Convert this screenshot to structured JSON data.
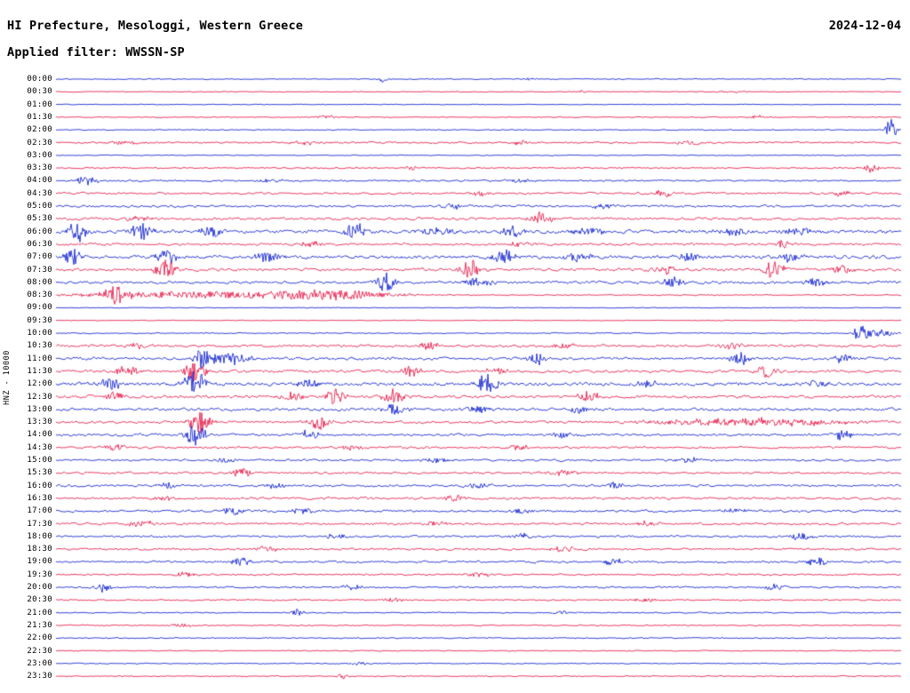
{
  "header": {
    "title": "HI Prefecture, Mesologgi, Western Greece",
    "date": "2024-12-04",
    "filter": "Applied filter: WWSSN-SP"
  },
  "y_axis_label": "HNZ - 10000",
  "colors": {
    "blue": "#0011cc",
    "red": "#e50a3c",
    "text": "#000000",
    "background": "#ffffff"
  },
  "chart_data": {
    "type": "line",
    "subtype": "seismogram-helicorder",
    "title": "HI Prefecture, Mesologgi, Western Greece",
    "date": "2024-12-04",
    "station_channel": "HNZ",
    "scale": "10000",
    "filter": "WWSSN-SP",
    "row_duration_minutes": 30,
    "x_range_minutes": [
      0,
      30
    ],
    "legend": "alternating blue/red traces per 30-minute row",
    "event_format": "p = position fraction across row (0-1), a = peak amplitude px, w = gaussian half-width fraction",
    "rows": [
      {
        "t": "00:00",
        "c": "blue",
        "n": 0.8,
        "e": [
          {
            "p": 0.385,
            "a": 4,
            "w": 0.006
          },
          {
            "p": 0.56,
            "a": 1.5,
            "w": 0.01
          }
        ]
      },
      {
        "t": "00:30",
        "c": "red",
        "n": 0.7,
        "e": [
          {
            "p": 0.62,
            "a": 2,
            "w": 0.008
          },
          {
            "p": 0.8,
            "a": 1.2,
            "w": 0.02
          }
        ]
      },
      {
        "t": "01:00",
        "c": "blue",
        "n": 0.6,
        "e": []
      },
      {
        "t": "01:30",
        "c": "red",
        "n": 0.8,
        "e": [
          {
            "p": 0.32,
            "a": 2.5,
            "w": 0.01
          },
          {
            "p": 0.83,
            "a": 2.5,
            "w": 0.008
          }
        ]
      },
      {
        "t": "02:00",
        "c": "blue",
        "n": 0.8,
        "e": [
          {
            "p": 0.988,
            "a": 14,
            "w": 0.006
          }
        ]
      },
      {
        "t": "02:30",
        "c": "red",
        "n": 1.6,
        "e": [
          {
            "p": 0.08,
            "a": 2,
            "w": 0.03
          },
          {
            "p": 0.3,
            "a": 2,
            "w": 0.02
          },
          {
            "p": 0.55,
            "a": 2,
            "w": 0.02
          },
          {
            "p": 0.75,
            "a": 2.5,
            "w": 0.015
          }
        ]
      },
      {
        "t": "03:00",
        "c": "blue",
        "n": 0.7,
        "e": []
      },
      {
        "t": "03:30",
        "c": "red",
        "n": 1.2,
        "e": [
          {
            "p": 0.42,
            "a": 2,
            "w": 0.01
          },
          {
            "p": 0.965,
            "a": 5,
            "w": 0.008
          }
        ]
      },
      {
        "t": "04:00",
        "c": "blue",
        "n": 1.5,
        "e": [
          {
            "p": 0.035,
            "a": 6,
            "w": 0.012
          },
          {
            "p": 0.25,
            "a": 2,
            "w": 0.02
          },
          {
            "p": 0.55,
            "a": 2,
            "w": 0.02
          }
        ]
      },
      {
        "t": "04:30",
        "c": "red",
        "n": 1.8,
        "e": [
          {
            "p": 0.5,
            "a": 3,
            "w": 0.012
          },
          {
            "p": 0.72,
            "a": 5,
            "w": 0.01
          },
          {
            "p": 0.93,
            "a": 4,
            "w": 0.01
          }
        ]
      },
      {
        "t": "05:00",
        "c": "blue",
        "n": 2,
        "e": [
          {
            "p": 0.47,
            "a": 3,
            "w": 0.015
          },
          {
            "p": 0.65,
            "a": 3,
            "w": 0.015
          }
        ]
      },
      {
        "t": "05:30",
        "c": "red",
        "n": 2.2,
        "e": [
          {
            "p": 0.1,
            "a": 3,
            "w": 0.015
          },
          {
            "p": 0.575,
            "a": 9,
            "w": 0.012
          }
        ]
      },
      {
        "t": "06:00",
        "c": "blue",
        "n": 3,
        "e": [
          {
            "p": 0.025,
            "a": 12,
            "w": 0.01
          },
          {
            "p": 0.1,
            "a": 11,
            "w": 0.012
          },
          {
            "p": 0.185,
            "a": 8,
            "w": 0.012
          },
          {
            "p": 0.355,
            "a": 10,
            "w": 0.012
          },
          {
            "p": 0.45,
            "a": 4,
            "w": 0.02
          },
          {
            "p": 0.54,
            "a": 7,
            "w": 0.012
          },
          {
            "p": 0.63,
            "a": 4,
            "w": 0.02
          },
          {
            "p": 0.8,
            "a": 4,
            "w": 0.02
          },
          {
            "p": 0.88,
            "a": 4,
            "w": 0.02
          }
        ]
      },
      {
        "t": "06:30",
        "c": "red",
        "n": 2,
        "e": [
          {
            "p": 0.3,
            "a": 3,
            "w": 0.015
          },
          {
            "p": 0.55,
            "a": 3,
            "w": 0.015
          },
          {
            "p": 0.86,
            "a": 5,
            "w": 0.008
          }
        ]
      },
      {
        "t": "07:00",
        "c": "blue",
        "n": 3,
        "e": [
          {
            "p": 0.02,
            "a": 10,
            "w": 0.01
          },
          {
            "p": 0.13,
            "a": 8,
            "w": 0.012
          },
          {
            "p": 0.25,
            "a": 6,
            "w": 0.015
          },
          {
            "p": 0.53,
            "a": 9,
            "w": 0.012
          },
          {
            "p": 0.62,
            "a": 6,
            "w": 0.015
          },
          {
            "p": 0.75,
            "a": 5,
            "w": 0.015
          },
          {
            "p": 0.87,
            "a": 6,
            "w": 0.012
          }
        ]
      },
      {
        "t": "07:30",
        "c": "red",
        "n": 2.5,
        "e": [
          {
            "p": 0.13,
            "a": 10,
            "w": 0.012
          },
          {
            "p": 0.49,
            "a": 12,
            "w": 0.012
          },
          {
            "p": 0.72,
            "a": 6,
            "w": 0.012
          },
          {
            "p": 0.85,
            "a": 11,
            "w": 0.012
          },
          {
            "p": 0.93,
            "a": 5,
            "w": 0.012
          }
        ]
      },
      {
        "t": "08:00",
        "c": "blue",
        "n": 2.5,
        "e": [
          {
            "p": 0.39,
            "a": 13,
            "w": 0.01
          },
          {
            "p": 0.5,
            "a": 5,
            "w": 0.015
          },
          {
            "p": 0.73,
            "a": 7,
            "w": 0.012
          },
          {
            "p": 0.9,
            "a": 4,
            "w": 0.015
          }
        ]
      },
      {
        "t": "08:30",
        "c": "red",
        "n": 1,
        "e": [
          {
            "p": 0.07,
            "a": 8,
            "w": 0.015
          },
          {
            "p": 0.2,
            "a": 4,
            "w": 0.18
          },
          {
            "p": 0.33,
            "a": 4,
            "w": 0.05
          }
        ]
      },
      {
        "t": "09:00",
        "c": "blue",
        "n": 0.6,
        "e": []
      },
      {
        "t": "09:30",
        "c": "red",
        "n": 0.6,
        "e": []
      },
      {
        "t": "10:00",
        "c": "blue",
        "n": 0.9,
        "e": [
          {
            "p": 0.952,
            "a": 10,
            "w": 0.008
          },
          {
            "p": 0.975,
            "a": 4,
            "w": 0.02
          }
        ]
      },
      {
        "t": "10:30",
        "c": "red",
        "n": 2.2,
        "e": [
          {
            "p": 0.1,
            "a": 3,
            "w": 0.015
          },
          {
            "p": 0.44,
            "a": 5,
            "w": 0.012
          },
          {
            "p": 0.6,
            "a": 3,
            "w": 0.015
          },
          {
            "p": 0.8,
            "a": 3,
            "w": 0.015
          }
        ]
      },
      {
        "t": "11:00",
        "c": "blue",
        "n": 2.5,
        "e": [
          {
            "p": 0.175,
            "a": 13,
            "w": 0.012
          },
          {
            "p": 0.21,
            "a": 8,
            "w": 0.02
          },
          {
            "p": 0.57,
            "a": 7,
            "w": 0.01
          },
          {
            "p": 0.81,
            "a": 7,
            "w": 0.012
          },
          {
            "p": 0.93,
            "a": 5,
            "w": 0.01
          }
        ]
      },
      {
        "t": "11:30",
        "c": "red",
        "n": 2.5,
        "e": [
          {
            "p": 0.085,
            "a": 7,
            "w": 0.012
          },
          {
            "p": 0.165,
            "a": 12,
            "w": 0.012
          },
          {
            "p": 0.42,
            "a": 6,
            "w": 0.012
          },
          {
            "p": 0.52,
            "a": 5,
            "w": 0.012
          },
          {
            "p": 0.84,
            "a": 7,
            "w": 0.012
          }
        ]
      },
      {
        "t": "12:00",
        "c": "blue",
        "n": 3,
        "e": [
          {
            "p": 0.065,
            "a": 6,
            "w": 0.012
          },
          {
            "p": 0.165,
            "a": 16,
            "w": 0.012
          },
          {
            "p": 0.3,
            "a": 5,
            "w": 0.015
          },
          {
            "p": 0.51,
            "a": 12,
            "w": 0.012
          },
          {
            "p": 0.7,
            "a": 4,
            "w": 0.015
          },
          {
            "p": 0.9,
            "a": 4,
            "w": 0.015
          }
        ]
      },
      {
        "t": "12:30",
        "c": "red",
        "n": 2.5,
        "e": [
          {
            "p": 0.07,
            "a": 5,
            "w": 0.012
          },
          {
            "p": 0.28,
            "a": 6,
            "w": 0.012
          },
          {
            "p": 0.33,
            "a": 8,
            "w": 0.012
          },
          {
            "p": 0.4,
            "a": 9,
            "w": 0.012
          },
          {
            "p": 0.63,
            "a": 6,
            "w": 0.012
          }
        ]
      },
      {
        "t": "13:00",
        "c": "blue",
        "n": 2.5,
        "e": [
          {
            "p": 0.4,
            "a": 8,
            "w": 0.012
          },
          {
            "p": 0.5,
            "a": 4,
            "w": 0.015
          },
          {
            "p": 0.62,
            "a": 5,
            "w": 0.012
          }
        ]
      },
      {
        "t": "13:30",
        "c": "red",
        "n": 2.2,
        "e": [
          {
            "p": 0.17,
            "a": 14,
            "w": 0.012
          },
          {
            "p": 0.31,
            "a": 8,
            "w": 0.012
          },
          {
            "p": 0.82,
            "a": 4,
            "w": 0.12
          }
        ]
      },
      {
        "t": "14:00",
        "c": "blue",
        "n": 2.2,
        "e": [
          {
            "p": 0.165,
            "a": 12,
            "w": 0.012
          },
          {
            "p": 0.3,
            "a": 5,
            "w": 0.012
          },
          {
            "p": 0.6,
            "a": 3,
            "w": 0.015
          },
          {
            "p": 0.93,
            "a": 6,
            "w": 0.01
          }
        ]
      },
      {
        "t": "14:30",
        "c": "red",
        "n": 1.8,
        "e": [
          {
            "p": 0.07,
            "a": 4,
            "w": 0.012
          },
          {
            "p": 0.35,
            "a": 3,
            "w": 0.015
          },
          {
            "p": 0.55,
            "a": 3,
            "w": 0.015
          }
        ]
      },
      {
        "t": "15:00",
        "c": "blue",
        "n": 1.8,
        "e": [
          {
            "p": 0.2,
            "a": 3,
            "w": 0.015
          },
          {
            "p": 0.45,
            "a": 3,
            "w": 0.015
          },
          {
            "p": 0.75,
            "a": 3,
            "w": 0.015
          }
        ]
      },
      {
        "t": "15:30",
        "c": "red",
        "n": 1.8,
        "e": [
          {
            "p": 0.22,
            "a": 5,
            "w": 0.012
          },
          {
            "p": 0.6,
            "a": 2.5,
            "w": 0.02
          }
        ]
      },
      {
        "t": "16:00",
        "c": "blue",
        "n": 2,
        "e": [
          {
            "p": 0.13,
            "a": 4,
            "w": 0.012
          },
          {
            "p": 0.26,
            "a": 4,
            "w": 0.012
          },
          {
            "p": 0.5,
            "a": 3,
            "w": 0.015
          },
          {
            "p": 0.66,
            "a": 4,
            "w": 0.012
          }
        ]
      },
      {
        "t": "16:30",
        "c": "red",
        "n": 2,
        "e": [
          {
            "p": 0.13,
            "a": 3,
            "w": 0.015
          },
          {
            "p": 0.47,
            "a": 5,
            "w": 0.012
          }
        ]
      },
      {
        "t": "17:00",
        "c": "blue",
        "n": 2,
        "e": [
          {
            "p": 0.21,
            "a": 5,
            "w": 0.012
          },
          {
            "p": 0.29,
            "a": 4,
            "w": 0.012
          },
          {
            "p": 0.55,
            "a": 3,
            "w": 0.015
          },
          {
            "p": 0.8,
            "a": 3,
            "w": 0.015
          }
        ]
      },
      {
        "t": "17:30",
        "c": "red",
        "n": 2,
        "e": [
          {
            "p": 0.1,
            "a": 3,
            "w": 0.015
          },
          {
            "p": 0.45,
            "a": 3,
            "w": 0.015
          },
          {
            "p": 0.7,
            "a": 3,
            "w": 0.015
          }
        ]
      },
      {
        "t": "18:00",
        "c": "blue",
        "n": 1.8,
        "e": [
          {
            "p": 0.33,
            "a": 4,
            "w": 0.012
          },
          {
            "p": 0.55,
            "a": 3,
            "w": 0.015
          },
          {
            "p": 0.88,
            "a": 5,
            "w": 0.012
          }
        ]
      },
      {
        "t": "18:30",
        "c": "red",
        "n": 1.8,
        "e": [
          {
            "p": 0.25,
            "a": 3,
            "w": 0.015
          },
          {
            "p": 0.6,
            "a": 3,
            "w": 0.015
          }
        ]
      },
      {
        "t": "19:00",
        "c": "blue",
        "n": 1.8,
        "e": [
          {
            "p": 0.22,
            "a": 5,
            "w": 0.012
          },
          {
            "p": 0.66,
            "a": 4,
            "w": 0.012
          },
          {
            "p": 0.9,
            "a": 5,
            "w": 0.012
          }
        ]
      },
      {
        "t": "19:30",
        "c": "red",
        "n": 1.5,
        "e": [
          {
            "p": 0.15,
            "a": 3,
            "w": 0.015
          },
          {
            "p": 0.5,
            "a": 3,
            "w": 0.015
          }
        ]
      },
      {
        "t": "20:00",
        "c": "blue",
        "n": 1.5,
        "e": [
          {
            "p": 0.055,
            "a": 5,
            "w": 0.01
          },
          {
            "p": 0.35,
            "a": 3,
            "w": 0.015
          },
          {
            "p": 0.85,
            "a": 4,
            "w": 0.012
          }
        ]
      },
      {
        "t": "20:30",
        "c": "red",
        "n": 1.2,
        "e": [
          {
            "p": 0.4,
            "a": 2,
            "w": 0.02
          },
          {
            "p": 0.7,
            "a": 2,
            "w": 0.02
          }
        ]
      },
      {
        "t": "21:00",
        "c": "blue",
        "n": 1,
        "e": [
          {
            "p": 0.285,
            "a": 4,
            "w": 0.008
          },
          {
            "p": 0.6,
            "a": 2,
            "w": 0.015
          }
        ]
      },
      {
        "t": "21:30",
        "c": "red",
        "n": 1,
        "e": [
          {
            "p": 0.15,
            "a": 2,
            "w": 0.015
          }
        ]
      },
      {
        "t": "22:00",
        "c": "blue",
        "n": 0.9,
        "e": []
      },
      {
        "t": "22:30",
        "c": "red",
        "n": 0.8,
        "e": []
      },
      {
        "t": "23:00",
        "c": "blue",
        "n": 0.8,
        "e": [
          {
            "p": 0.36,
            "a": 2,
            "w": 0.01
          }
        ]
      },
      {
        "t": "23:30",
        "c": "red",
        "n": 0.9,
        "e": [
          {
            "p": 0.34,
            "a": 3,
            "w": 0.008
          }
        ]
      }
    ]
  }
}
